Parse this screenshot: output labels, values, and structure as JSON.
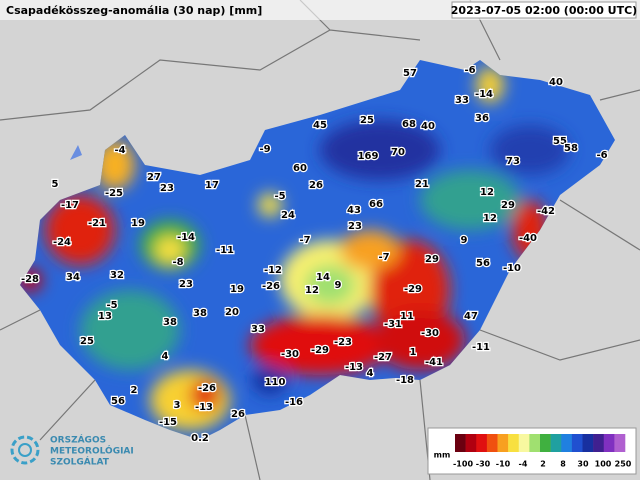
{
  "header": {
    "title": "Csapadékösszeg-anomália (30 nap) [mm]",
    "timestamp": "2023-07-05 02:00 (00:00 UTC)"
  },
  "stations": [
    57,
    -6,
    -14,
    33,
    40,
    36,
    45,
    25,
    68,
    40,
    -9,
    55,
    58,
    -6,
    73,
    60,
    169,
    70,
    -4,
    27,
    23,
    17,
    26,
    21,
    5,
    -25,
    12,
    -5,
    24,
    43,
    66,
    29,
    -17,
    -21,
    19,
    12,
    -42,
    23,
    -14,
    -11,
    -7,
    -24,
    -40,
    9,
    -8,
    -12,
    -7,
    29,
    56,
    -10,
    -28,
    34,
    32,
    14,
    9,
    23,
    -26,
    12,
    19,
    -29,
    -5,
    38,
    20,
    13,
    38,
    11,
    47,
    -31,
    -30,
    33,
    25,
    -23,
    -11,
    -30,
    -29,
    4,
    -27,
    -41,
    1,
    -13,
    4,
    110,
    -18,
    -26,
    2,
    56,
    -16,
    3,
    -13,
    26,
    -15,
    0.2
  ],
  "legend": {
    "unit": "mm",
    "labels": [
      -100,
      -30,
      -10,
      -4,
      2,
      8,
      30,
      100,
      250
    ],
    "colors": [
      "#6b0010",
      "#b00010",
      "#e01010",
      "#f05010",
      "#f8a020",
      "#f8e040",
      "#f8f8a0",
      "#a0e070",
      "#40b040",
      "#20a0a0",
      "#2080e0",
      "#2050d0",
      "#1830a0",
      "#402090",
      "#8030c0",
      "#b060d0"
    ]
  },
  "logo": {
    "lines": [
      "ORSZÁGOS",
      "METEOROLÓGIAI",
      "SZOLGÁLAT"
    ]
  }
}
